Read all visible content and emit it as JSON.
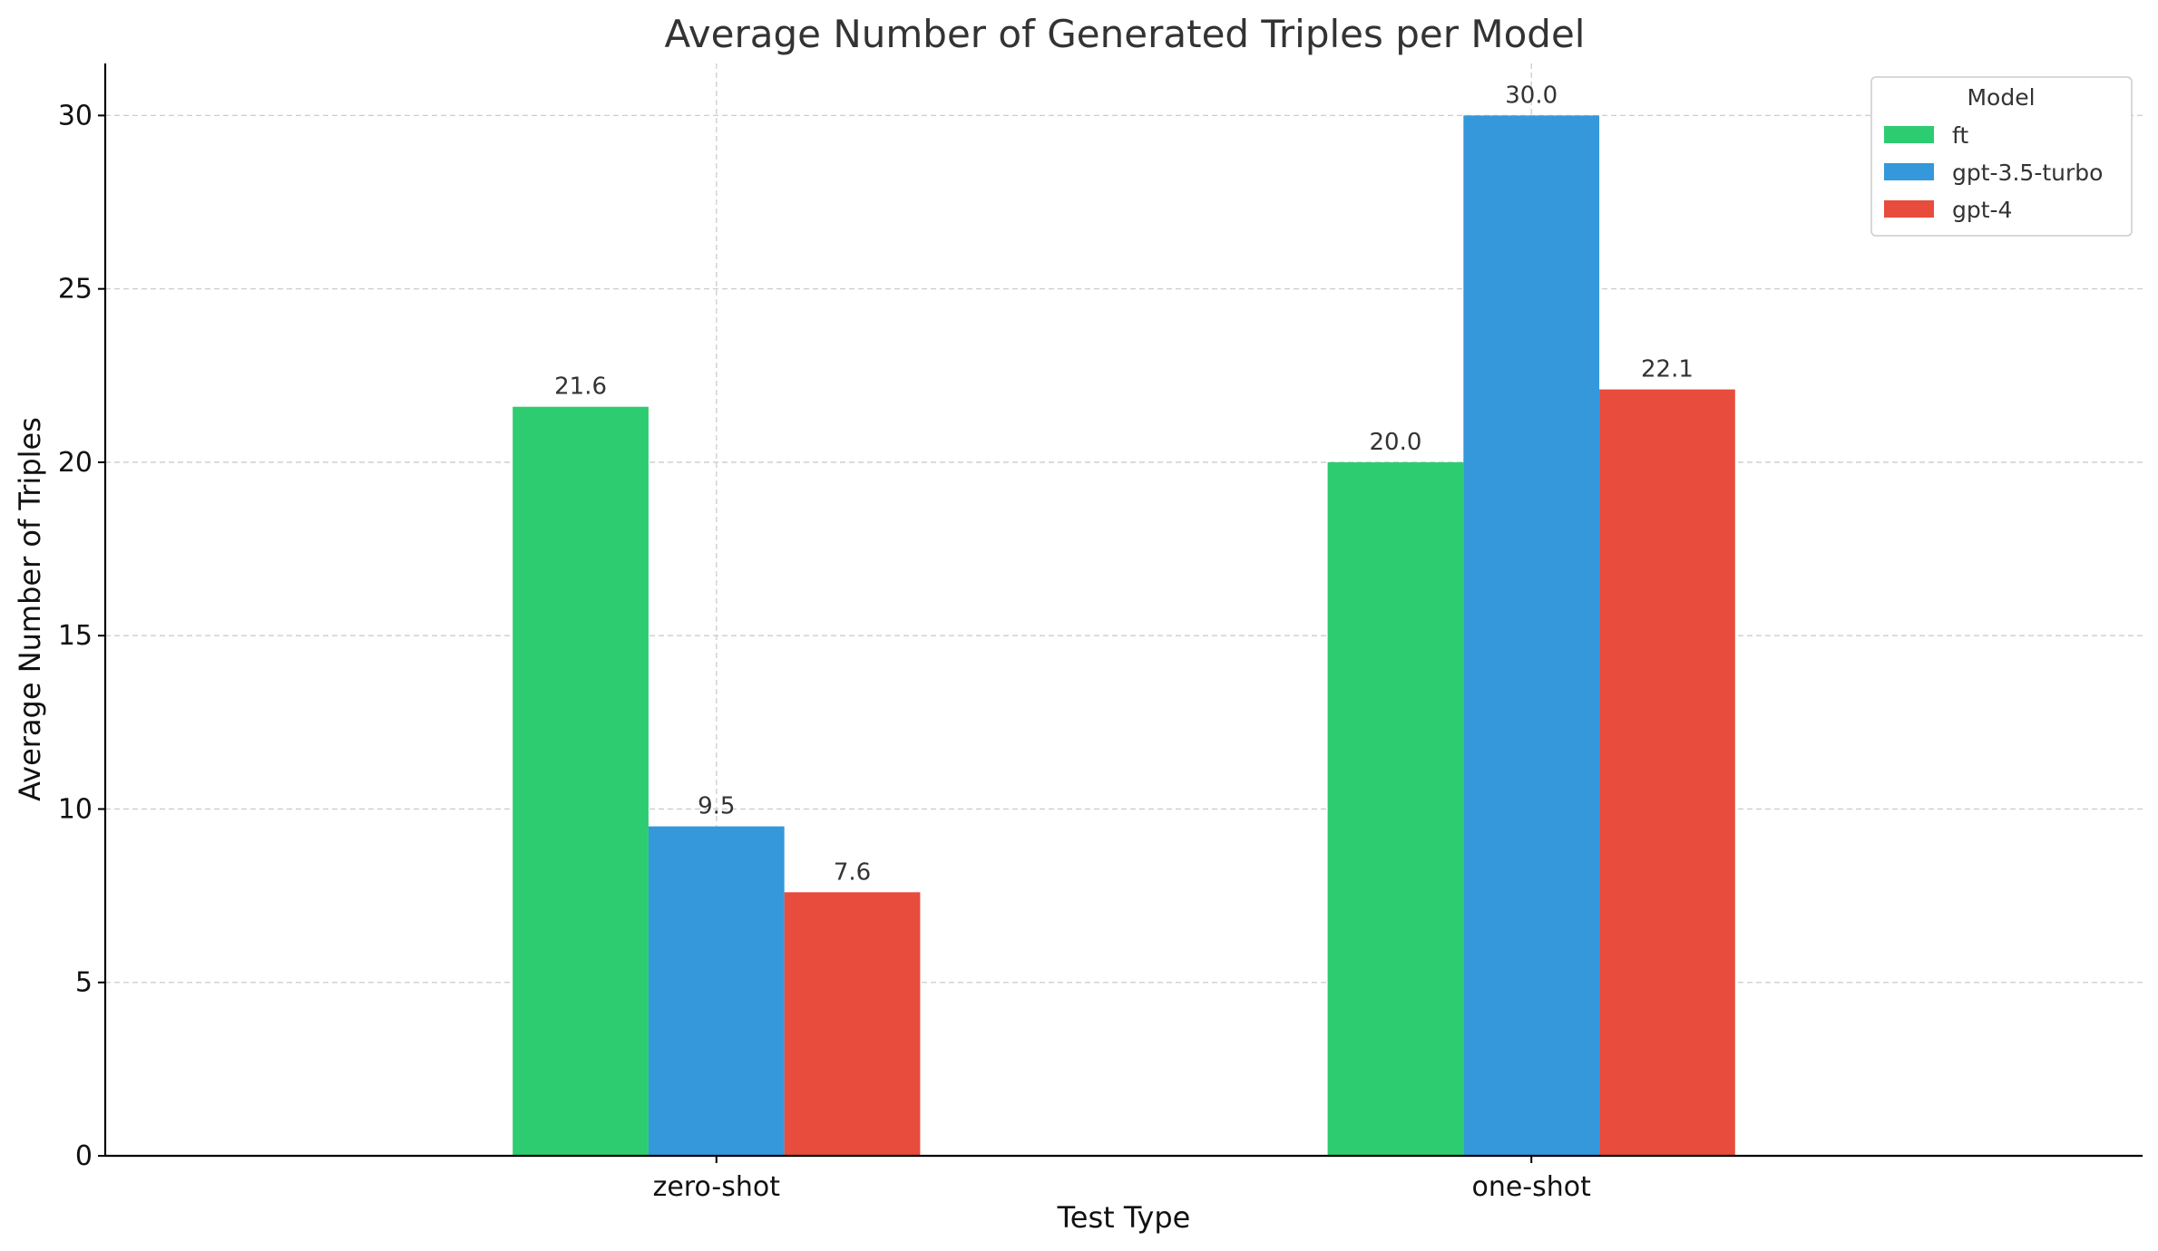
{
  "chart_data": {
    "type": "bar",
    "title": "Average Number of Generated Triples per Model",
    "xlabel": "Test Type",
    "ylabel": "Average Number of Triples",
    "categories": [
      "zero-shot",
      "one-shot"
    ],
    "series": [
      {
        "name": "ft",
        "values": [
          21.6,
          20.0
        ],
        "color": "#2ecc71"
      },
      {
        "name": "gpt-3.5-turbo",
        "values": [
          9.5,
          30.0
        ],
        "color": "#3498db"
      },
      {
        "name": "gpt-4",
        "values": [
          7.6,
          22.1
        ],
        "color": "#e74c3c"
      }
    ],
    "ylim": [
      0,
      31.5
    ],
    "yticks": [
      0,
      5,
      10,
      15,
      20,
      25,
      30
    ],
    "grid": true,
    "legend": {
      "title": "Model",
      "placement": "top-right"
    },
    "data_label_format": "one decimal"
  }
}
